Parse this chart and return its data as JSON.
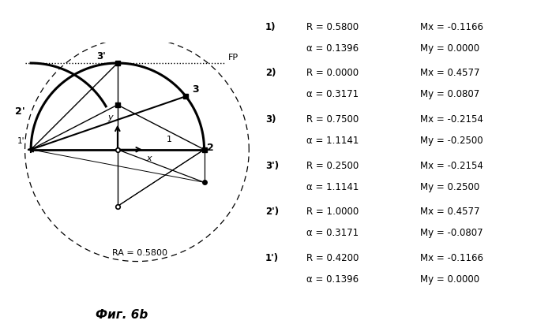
{
  "title": "Фиг. 6b",
  "RA": 0.58,
  "FP_label": "FP",
  "RA_label": "RA = 0.5800",
  "bg_color": "#ffffff",
  "legend_entries": [
    {
      "num": "1)",
      "r": "R = 0.5800",
      "mx": "Mx = -0.1166",
      "alpha": "α = 0.1396",
      "my": "My = 0.0000"
    },
    {
      "num": "2)",
      "r": "R = 0.0000",
      "mx": "Mx = 0.4577",
      "alpha": "α = 0.3171",
      "my": "My = 0.0807"
    },
    {
      "num": "3)",
      "r": "R = 0.7500",
      "mx": "Mx = -0.2154",
      "alpha": "α = 1.1141",
      "my": "My = -0.2500"
    },
    {
      "num": "3')",
      "r": "R = 0.2500",
      "mx": "Mx = -0.2154",
      "alpha": "α = 1.1141",
      "my": "My = 0.2500"
    },
    {
      "num": "2')",
      "r": "R = 1.0000",
      "mx": "Mx = 0.4577",
      "alpha": "α = 0.3171",
      "my": "My = -0.0807"
    },
    {
      "num": "1')",
      "r": "R = 0.4200",
      "mx": "Mx = -0.1166",
      "alpha": "α = 0.1396",
      "my": "My = 0.0000"
    }
  ]
}
